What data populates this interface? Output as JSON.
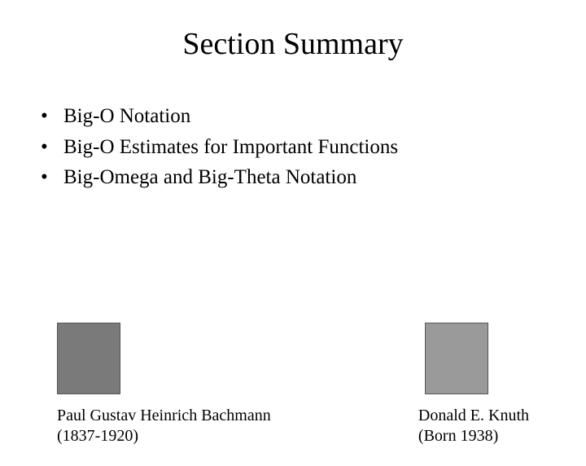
{
  "title": "Section Summary",
  "bullets": [
    "Big-O Notation",
    "Big-O Estimates for Important Functions",
    "Big-Omega and Big-Theta Notation"
  ],
  "people": {
    "left": {
      "name": "Paul Gustav Heinrich Bachmann",
      "dates": "(1837-1920)",
      "portrait_bg": "#7a7a7a"
    },
    "right": {
      "name": "Donald E. Knuth",
      "dates": "(Born 1938)",
      "portrait_bg": "#9a9a9a"
    }
  },
  "colors": {
    "background": "#ffffff",
    "text": "#000000"
  },
  "typography": {
    "title_fontsize": 38,
    "bullet_fontsize": 25,
    "caption_fontsize": 20,
    "font_family": "Times New Roman"
  }
}
